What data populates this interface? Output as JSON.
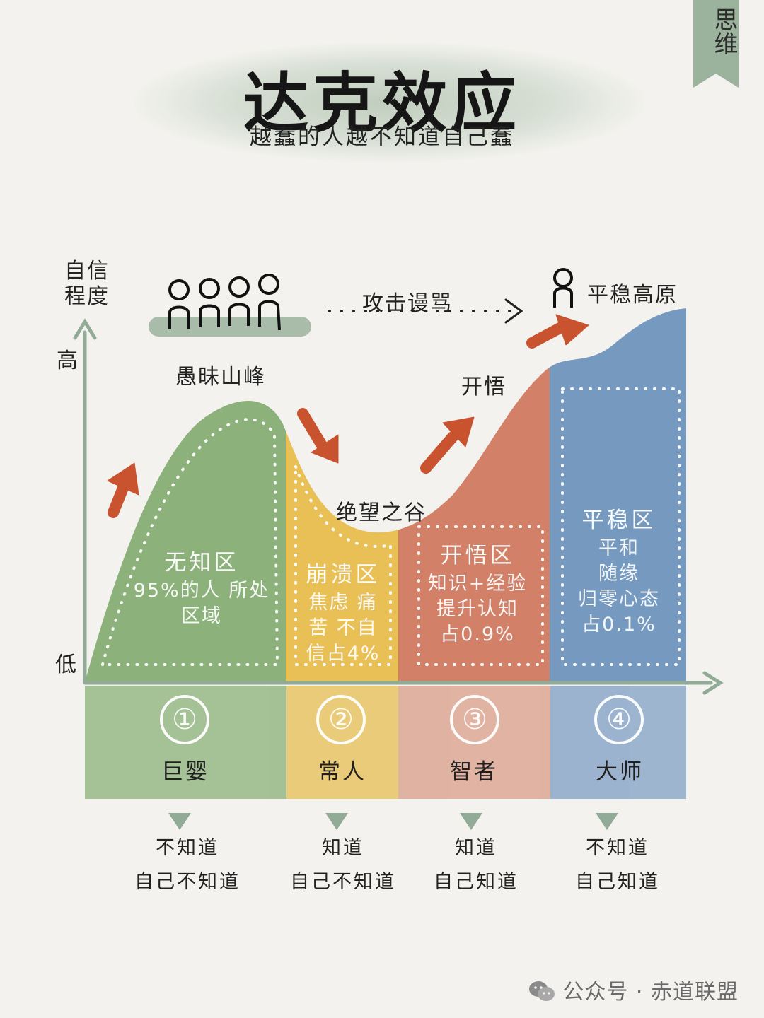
{
  "title": "达克效应",
  "subtitle": "越蠢的人越不知道自己蠢",
  "corner_tag": "思维",
  "axis": {
    "y_label_line1": "自信",
    "y_label_line2": "程度",
    "high": "高",
    "low": "低"
  },
  "annotations": {
    "peak": "愚昧山峰",
    "valley": "绝望之谷",
    "enlighten": "开悟",
    "plateau": "平稳高原",
    "climb": "攻击谩骂"
  },
  "zones": [
    {
      "title": "无知区",
      "lines": [
        "95%的人 所处",
        "区域"
      ],
      "number": "①",
      "label": "巨婴",
      "know_line1": "不知道",
      "know_line2": "自己不知道",
      "color": "#86ad74"
    },
    {
      "title": "崩溃区",
      "lines": [
        "焦虑 痛",
        "苦 不自",
        "信占4%"
      ],
      "number": "②",
      "label": "常人",
      "know_line1": "知道",
      "know_line2": "自己不知道",
      "color": "#e7bd4d"
    },
    {
      "title": "开悟区",
      "lines": [
        "知识+经验",
        "提升认知",
        "占0.9%"
      ],
      "number": "③",
      "label": "智者",
      "know_line1": "知道",
      "know_line2": "自己知道",
      "color": "#d07a60"
    },
    {
      "title": "平稳区",
      "lines": [
        "平和",
        "随缘",
        "归零心态",
        "占0.1%"
      ],
      "number": "④",
      "label": "大师",
      "know_line1": "不知道",
      "know_line2": "自己知道",
      "color": "#6f93bd"
    }
  ],
  "colors": {
    "axis": "#92ab96",
    "arrow": "#c9532f",
    "wash": "#9bb39d"
  },
  "footer": "公众号 · 赤道联盟"
}
